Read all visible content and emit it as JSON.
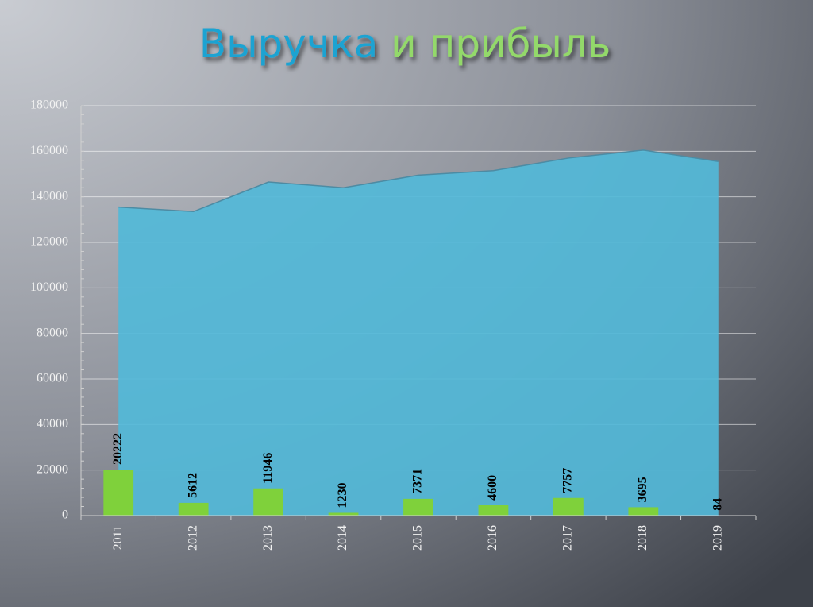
{
  "chart_data": {
    "type": "combo",
    "title": [
      "Выручка",
      "и прибыль"
    ],
    "categories": [
      "2011",
      "2012",
      "2013",
      "2014",
      "2015",
      "2016",
      "2017",
      "2018",
      "2019"
    ],
    "series": [
      {
        "type": "area",
        "color": "#52b8d8",
        "values": [
          135500,
          133500,
          146500,
          144000,
          149500,
          151500,
          157000,
          160500,
          155500
        ]
      },
      {
        "type": "bar",
        "color": "#7fd13b",
        "values": [
          20222,
          5612,
          11946,
          1230,
          7371,
          4600,
          7757,
          3695,
          84
        ],
        "data_labels": true
      }
    ],
    "ylim": [
      0,
      180000
    ],
    "yticks": [
      0,
      20000,
      40000,
      60000,
      80000,
      100000,
      120000,
      140000,
      160000,
      180000
    ],
    "grid": true
  }
}
